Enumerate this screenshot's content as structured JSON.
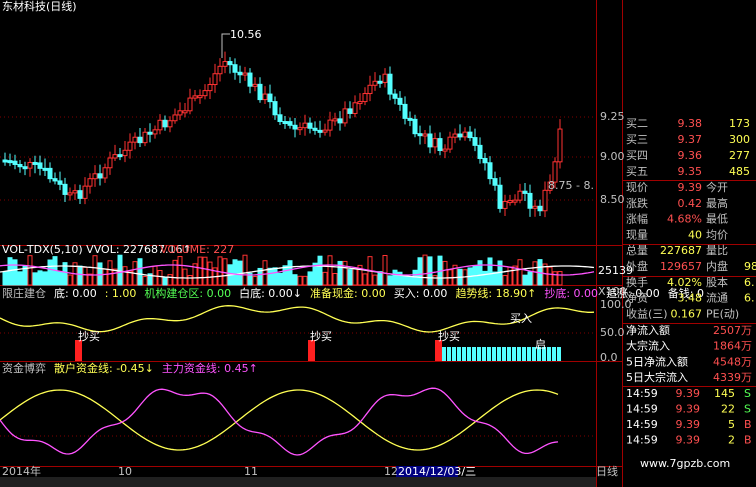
{
  "header": {
    "title": "东材科技(日线)",
    "peak_label": "10.56",
    "range_label": "8.75 - 8."
  },
  "price_axis": [
    "9.25",
    "9.00",
    "8.50"
  ],
  "volume_panel": {
    "header": "VOL-TDX(5,10) VVOL: 227687.16↑",
    "header2": "VOLUME: 227",
    "axis": [
      "25139",
      "X100"
    ]
  },
  "indicator1": {
    "segments": [
      {
        "text": "限庄建仓",
        "color": "#c0c0c0"
      },
      {
        "text": "底: 0.00",
        "color": "#ffffff"
      },
      {
        "text": ": 1.00",
        "color": "#ffff54"
      },
      {
        "text": "机构建仓区: 0.00",
        "color": "#54ff54"
      },
      {
        "text": "白底: 0.00↓",
        "color": "#ffffff"
      },
      {
        "text": "准备现金: 0.00",
        "color": "#ffff54"
      },
      {
        "text": "买入: 0.00",
        "color": "#ffffff"
      },
      {
        "text": "趋势线: 18.90↑",
        "color": "#ffff54"
      },
      {
        "text": "抄底: 0.00",
        "color": "#ff54ff"
      },
      {
        "text": "追涨: 0.00",
        "color": "#ffffff"
      },
      {
        "text": "备钱: 0",
        "color": "#ffffff"
      }
    ],
    "signals": [
      "抄买",
      "抄买",
      "抄买",
      "买入",
      "启"
    ],
    "axis": [
      "100.0",
      "50.0",
      "0.0"
    ]
  },
  "indicator2": {
    "segments": [
      {
        "text": "资金博弈",
        "color": "#c0c0c0"
      },
      {
        "text": "散户资金线: -0.45↓",
        "color": "#ffff54"
      },
      {
        "text": "主力资金线: 0.45↑",
        "color": "#ff54ff"
      }
    ]
  },
  "time_axis": [
    "2014年",
    "10",
    "11",
    "12",
    "2014/12/03/三",
    "日线"
  ],
  "watermark": "www.7gpzb.com",
  "order_book": [
    {
      "label": "买二",
      "price": "9.38",
      "volume": "173"
    },
    {
      "label": "买三",
      "price": "9.37",
      "volume": "300"
    },
    {
      "label": "买四",
      "price": "9.36",
      "volume": "277"
    },
    {
      "label": "买五",
      "price": "9.35",
      "volume": "485"
    }
  ],
  "quotes": [
    {
      "label": "现价",
      "value": "9.39",
      "label2": "今开"
    },
    {
      "label": "涨跌",
      "value": "0.42",
      "label2": "最高"
    },
    {
      "label": "涨幅",
      "value": "4.68%",
      "label2": "最低"
    },
    {
      "label": "现量",
      "value": "40",
      "label2": "均价"
    },
    {
      "label": "总量",
      "value": "227687",
      "label2": "量比"
    },
    {
      "label": "外盘",
      "value": "129657",
      "label2": "内盘",
      "value2": "98"
    },
    {
      "label": "换手",
      "value": "4.02%",
      "label2": "股本",
      "value2": "6."
    },
    {
      "label": "净资",
      "value": "3.48",
      "label2": "流通",
      "value2": "6."
    },
    {
      "label": "收益(三)",
      "value": "0.167",
      "label2": "PE(动)"
    }
  ],
  "flows": [
    {
      "label": "净流入额",
      "value": "2507万"
    },
    {
      "label": "大宗流入",
      "value": "1864万"
    },
    {
      "label": "5日净流入额",
      "value": "4548万"
    },
    {
      "label": "5日大宗流入",
      "value": "4339万"
    }
  ],
  "ticks": [
    {
      "time": "14:59",
      "price": "9.39",
      "volume": "145",
      "side": "S"
    },
    {
      "time": "14:59",
      "price": "9.39",
      "volume": "22",
      "side": "S"
    },
    {
      "time": "14:59",
      "price": "9.39",
      "volume": "5",
      "side": "B"
    },
    {
      "time": "14:59",
      "price": "9.39",
      "volume": "2",
      "side": "B"
    }
  ]
}
